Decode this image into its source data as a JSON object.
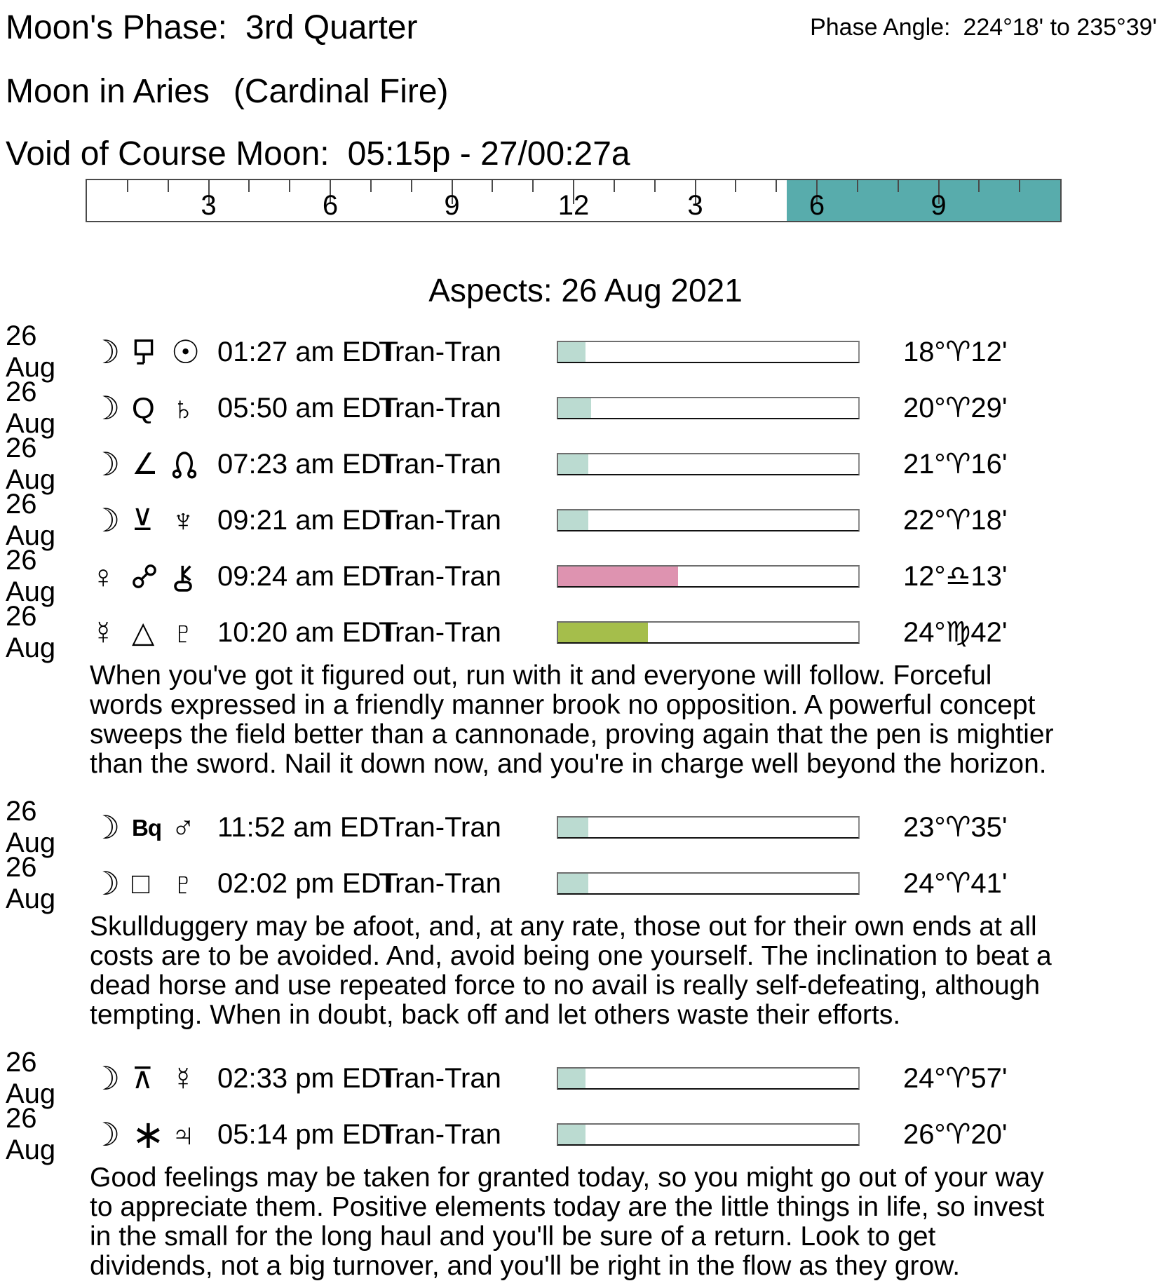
{
  "header": {
    "moons_phase_label": "Moon's Phase:",
    "moons_phase_value": "3rd Quarter",
    "phase_angle_label": "Phase Angle:",
    "phase_angle_value": "224°18' to 235°39'",
    "moon_sign": "Moon in Aries",
    "moon_sign_quality": "(Cardinal Fire)",
    "voc_label": "Void of Course Moon:",
    "voc_value": "05:15p - 27/00:27a"
  },
  "timeline": {
    "hours_span": 24,
    "hour_labels": [
      {
        "text": "3",
        "hour": 3
      },
      {
        "text": "6",
        "hour": 6
      },
      {
        "text": "9",
        "hour": 9
      },
      {
        "text": "12",
        "hour": 12
      },
      {
        "text": "3",
        "hour": 15
      },
      {
        "text": "6",
        "hour": 18
      },
      {
        "text": "9",
        "hour": 21
      }
    ],
    "void_start_hour": 17.25,
    "void_end_hour": 24,
    "fill_color": "#58ACAC"
  },
  "aspects_title": "Aspects: 26 Aug 2021",
  "bar_colors": {
    "lunar": "#BBDBD1",
    "pink": "#DE93B0",
    "olive": "#A5BE4B"
  },
  "aspects": [
    {
      "date": "26 Aug",
      "body1": "moon",
      "body1_glyph": "☽",
      "aspect": "sesquiquadrate",
      "aspect_glyph": "",
      "body2": "sun",
      "body2_glyph": "☉",
      "time": "01:27 am EDT",
      "type": "Tran-Tran",
      "bar": {
        "fill_pct": 9,
        "color": "#BBDBD1"
      },
      "degree": "18°♈12'"
    },
    {
      "date": "26 Aug",
      "body1": "moon",
      "body1_glyph": "☽",
      "aspect": "quintile",
      "aspect_glyph": "Q",
      "body2": "saturn",
      "body2_glyph": "♄",
      "time": "05:50 am EDT",
      "type": "Tran-Tran",
      "bar": {
        "fill_pct": 11,
        "color": "#BBDBD1"
      },
      "degree": "20°♈29'"
    },
    {
      "date": "26 Aug",
      "body1": "moon",
      "body1_glyph": "☽",
      "aspect": "semisquare",
      "aspect_glyph": "∠",
      "body2": "north-node",
      "body2_glyph": "",
      "time": "07:23 am EDT",
      "type": "Tran-Tran",
      "bar": {
        "fill_pct": 10,
        "color": "#BBDBD1"
      },
      "degree": "21°♈16'"
    },
    {
      "date": "26 Aug",
      "body1": "moon",
      "body1_glyph": "☽",
      "aspect": "semisextile",
      "aspect_glyph": "⊻",
      "body2": "neptune",
      "body2_glyph": "♆",
      "time": "09:21 am EDT",
      "type": "Tran-Tran",
      "bar": {
        "fill_pct": 10,
        "color": "#BBDBD1"
      },
      "degree": "22°♈18'"
    },
    {
      "date": "26 Aug",
      "body1": "venus",
      "body1_glyph": "♀",
      "aspect": "opposition",
      "aspect_glyph": "",
      "body2": "chiron",
      "body2_glyph": "",
      "time": "09:24 am EDT",
      "type": "Tran-Tran",
      "bar": {
        "fill_pct": 40,
        "color": "#DE93B0"
      },
      "degree": "12°♎13'"
    },
    {
      "date": "26 Aug",
      "body1": "mercury",
      "body1_glyph": "☿",
      "aspect": "trine",
      "aspect_glyph": "△",
      "body2": "pluto",
      "body2_glyph": "♇",
      "time": "10:20 am EDT",
      "type": "Tran-Tran",
      "bar": {
        "fill_pct": 30,
        "color": "#A5BE4B"
      },
      "degree": "24°♍42'",
      "note": "When you've got it figured out, run with it and everyone will follow. Forceful words expressed in a friendly manner brook no opposition. A powerful concept sweeps the field better than a cannonade, proving again that the pen is mightier than the sword. Nail it down now, and you're in charge well beyond the horizon."
    },
    {
      "date": "26 Aug",
      "body1": "moon",
      "body1_glyph": "☽",
      "aspect": "biquintile",
      "aspect_glyph": "Bq",
      "body2": "mars",
      "body2_glyph": "♂",
      "time": "11:52 am EDT",
      "type": "Tran-Tran",
      "bar": {
        "fill_pct": 10,
        "color": "#BBDBD1"
      },
      "degree": "23°♈35'"
    },
    {
      "date": "26 Aug",
      "body1": "moon",
      "body1_glyph": "☽",
      "aspect": "square",
      "aspect_glyph": "□",
      "body2": "pluto",
      "body2_glyph": "♇",
      "time": "02:02 pm EDT",
      "type": "Tran-Tran",
      "bar": {
        "fill_pct": 10,
        "color": "#BBDBD1"
      },
      "degree": "24°♈41'",
      "note": "Skullduggery may be afoot, and, at any rate, those out for their own ends at all costs are to be avoided. And, avoid being one yourself. The inclination to beat a dead horse and use repeated force to no avail is really self-defeating, although tempting. When in doubt, back off and let others waste their efforts."
    },
    {
      "date": "26 Aug",
      "body1": "moon",
      "body1_glyph": "☽",
      "aspect": "quincunx",
      "aspect_glyph": "⊼",
      "body2": "mercury",
      "body2_glyph": "☿",
      "time": "02:33 pm EDT",
      "type": "Tran-Tran",
      "bar": {
        "fill_pct": 9,
        "color": "#BBDBD1"
      },
      "degree": "24°♈57'"
    },
    {
      "date": "26 Aug",
      "body1": "moon",
      "body1_glyph": "☽",
      "aspect": "sextile",
      "aspect_glyph": "∗",
      "body2": "jupiter",
      "body2_glyph": "♃",
      "time": "05:14 pm EDT",
      "type": "Tran-Tran",
      "bar": {
        "fill_pct": 9,
        "color": "#BBDBD1"
      },
      "degree": "26°♈20'",
      "note": "Good feelings may be taken for granted today, so you might go out of your way to appreciate them. Positive elements today are the little things in life, so invest in the small for the long haul and you'll be sure of a return. Look to get dividends, not a big turnover, and you'll be right in the flow as they grow."
    }
  ]
}
